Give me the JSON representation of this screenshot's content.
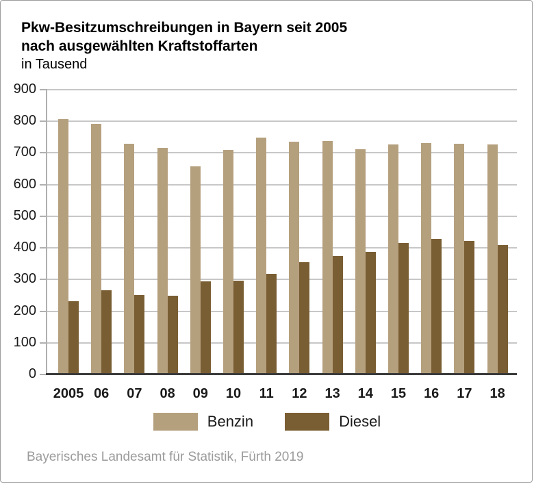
{
  "header": {
    "title_line1": "Pkw-Besitzumschreibungen in Bayern seit 2005",
    "title_line2": "nach ausgewählten Kraftstoffarten",
    "subtitle": "in Tausend"
  },
  "source": "Bayerisches Landesamt für Statistik, Fürth 2019",
  "colors": {
    "benzin": "#b5a07e",
    "diesel": "#7a5e33",
    "gridline": "#c7c7c7",
    "axis": "#b0b0b0",
    "baseline": "#3a3a3a",
    "axis_label": "#1a1a1a",
    "source_text": "#9b9b9b"
  },
  "chart_data": {
    "type": "bar",
    "title": "Pkw-Besitzumschreibungen in Bayern seit 2005 nach ausgewählten Kraftstoffarten",
    "subtitle": "in Tausend",
    "categories": [
      "2005",
      "06",
      "07",
      "08",
      "09",
      "10",
      "11",
      "12",
      "13",
      "14",
      "15",
      "16",
      "17",
      "18"
    ],
    "series": [
      {
        "name": "Benzin",
        "color": "#b5a07e",
        "values": [
          808,
          791,
          729,
          717,
          657,
          710,
          749,
          735,
          737,
          711,
          726,
          731,
          729,
          727
        ]
      },
      {
        "name": "Diesel",
        "color": "#7a5e33",
        "values": [
          231,
          267,
          252,
          248,
          294,
          296,
          318,
          354,
          374,
          387,
          415,
          429,
          421,
          410
        ]
      }
    ],
    "xlabel": "",
    "ylabel": "",
    "ylim": [
      0,
      900
    ],
    "ytick_step": 100,
    "grid": true,
    "legend_position": "bottom",
    "source": "Bayerisches Landesamt für Statistik, Fürth 2019"
  }
}
